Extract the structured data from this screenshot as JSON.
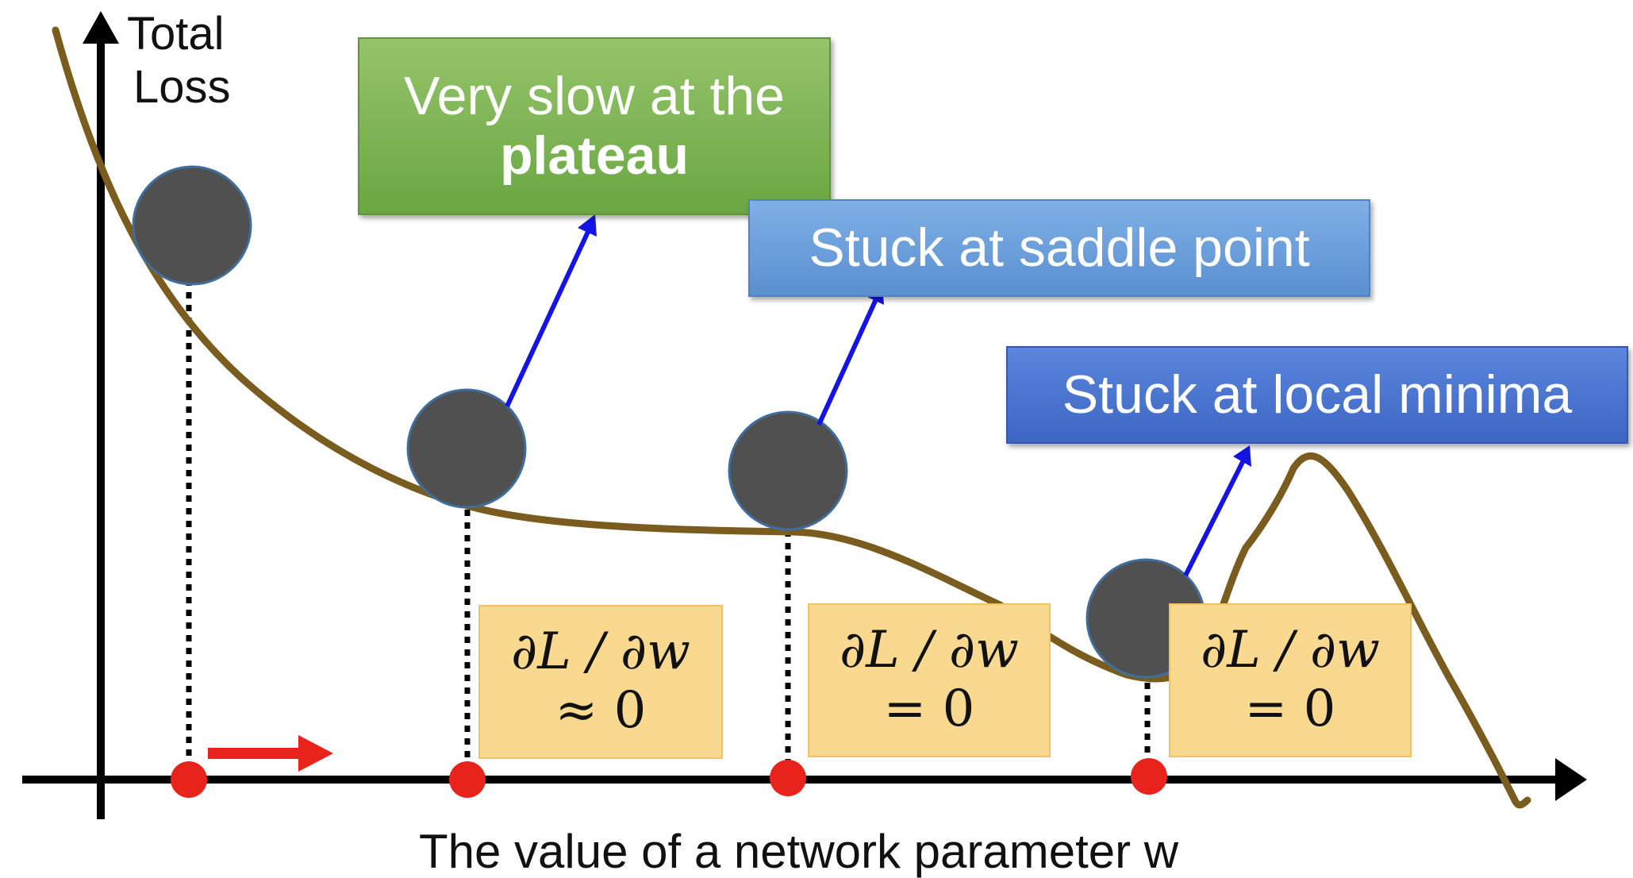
{
  "y_axis_label": [
    "Total",
    "Loss"
  ],
  "x_axis_label": "The value of a network parameter w",
  "callouts": {
    "plateau": {
      "line1": "Very slow at the",
      "line2": "plateau"
    },
    "saddle": "Stuck at saddle point",
    "local_min": "Stuck at local minima"
  },
  "derivatives": [
    {
      "expr": "∂L / ∂w",
      "rel": "≈ 0"
    },
    {
      "expr": "∂L / ∂w",
      "rel": "= 0"
    },
    {
      "expr": "∂L / ∂w",
      "rel": "= 0"
    }
  ],
  "colors": {
    "curve": "#7a5d1e",
    "ball": "#505050",
    "ball_outline": "#3f6e9e",
    "marker": "#e8231b",
    "arrow": "#1414e6",
    "plateau_box": "#6aa642",
    "saddle_box": "#5a8fd0",
    "local_min_box": "#3d66c4",
    "deriv_box": "#f9d98f"
  }
}
